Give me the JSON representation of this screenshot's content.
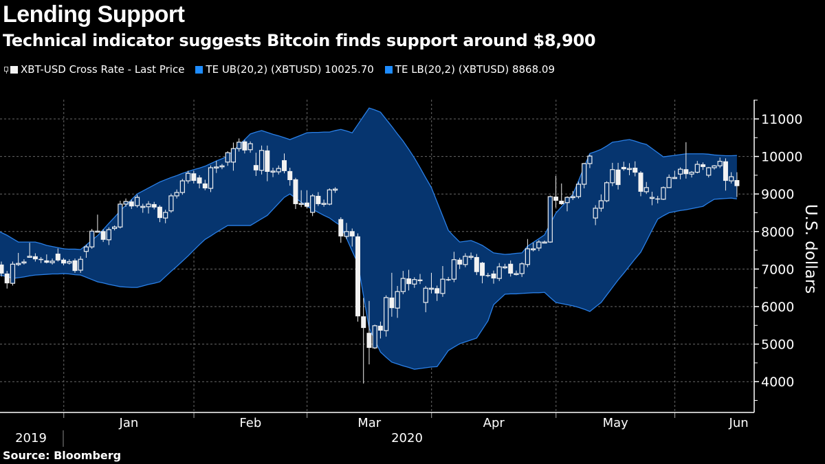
{
  "chart_data": {
    "type": "candlestick",
    "title": "Lending Support",
    "subtitle": "Technical indicator suggests Bitcoin finds support around $8,900",
    "ylabel": "U.S. dollars",
    "source": "Source: Bloomberg",
    "ylim": [
      3200,
      11500
    ],
    "y_ticks": [
      4000,
      5000,
      6000,
      7000,
      8000,
      9000,
      10000,
      11000
    ],
    "x_month_labels": [
      "Jan",
      "Feb",
      "Mar",
      "Apr",
      "May",
      "Jun"
    ],
    "x_year_labels": [
      "2019",
      "2020"
    ],
    "grid": true,
    "legend_placement": "top-left",
    "colors": {
      "background": "#000000",
      "candle": "#f2f2f2",
      "band_fill": "#06356f",
      "band_line": "#2a80e8",
      "legend_blue": "#1e8cff"
    },
    "legend": [
      {
        "label": "XBT-USD Cross Rate - Last Price",
        "swatch": "#f2f2f2",
        "icon": "candlestick-icon"
      },
      {
        "label": "TE UB(20,2) (XBTUSD) 10025.70",
        "swatch": "#1e8cff"
      },
      {
        "label": "TE LB(20,2) (XBTUSD) 8868.09",
        "swatch": "#1e8cff"
      }
    ],
    "dates": [
      "2019-12-16",
      "2019-12-17",
      "2019-12-18",
      "2019-12-19",
      "2019-12-20",
      "2019-12-23",
      "2019-12-24",
      "2019-12-25",
      "2019-12-26",
      "2019-12-27",
      "2019-12-30",
      "2019-12-31",
      "2020-01-01",
      "2020-01-02",
      "2020-01-03",
      "2020-01-06",
      "2020-01-07",
      "2020-01-08",
      "2020-01-09",
      "2020-01-10",
      "2020-01-13",
      "2020-01-14",
      "2020-01-15",
      "2020-01-16",
      "2020-01-17",
      "2020-01-20",
      "2020-01-21",
      "2020-01-22",
      "2020-01-23",
      "2020-01-24",
      "2020-01-27",
      "2020-01-28",
      "2020-01-29",
      "2020-01-30",
      "2020-01-31",
      "2020-02-03",
      "2020-02-04",
      "2020-02-05",
      "2020-02-06",
      "2020-02-07",
      "2020-02-10",
      "2020-02-11",
      "2020-02-12",
      "2020-02-13",
      "2020-02-14",
      "2020-02-17",
      "2020-02-18",
      "2020-02-19",
      "2020-02-20",
      "2020-02-21",
      "2020-02-24",
      "2020-02-25",
      "2020-02-26",
      "2020-02-27",
      "2020-02-28",
      "2020-03-02",
      "2020-03-03",
      "2020-03-04",
      "2020-03-05",
      "2020-03-06",
      "2020-03-09",
      "2020-03-10",
      "2020-03-11",
      "2020-03-12",
      "2020-03-13",
      "2020-03-16",
      "2020-03-17",
      "2020-03-18",
      "2020-03-19",
      "2020-03-20",
      "2020-03-23",
      "2020-03-24",
      "2020-03-25",
      "2020-03-26",
      "2020-03-27",
      "2020-03-30",
      "2020-03-31",
      "2020-04-01",
      "2020-04-02",
      "2020-04-03",
      "2020-04-06",
      "2020-04-07",
      "2020-04-08",
      "2020-04-09",
      "2020-04-10",
      "2020-04-13",
      "2020-04-14",
      "2020-04-15",
      "2020-04-16",
      "2020-04-17",
      "2020-04-20",
      "2020-04-21",
      "2020-04-22",
      "2020-04-23",
      "2020-04-24",
      "2020-04-27",
      "2020-04-28",
      "2020-04-29",
      "2020-04-30",
      "2020-05-01",
      "2020-05-04",
      "2020-05-05",
      "2020-05-06",
      "2020-05-07",
      "2020-05-08",
      "2020-05-11",
      "2020-05-12",
      "2020-05-13",
      "2020-05-14",
      "2020-05-15",
      "2020-05-18",
      "2020-05-19",
      "2020-05-20",
      "2020-05-21",
      "2020-05-22",
      "2020-05-25",
      "2020-05-26",
      "2020-05-27",
      "2020-05-28",
      "2020-05-29",
      "2020-06-01",
      "2020-06-02",
      "2020-06-03",
      "2020-06-04",
      "2020-06-05",
      "2020-06-08",
      "2020-06-09",
      "2020-06-10",
      "2020-06-11",
      "2020-06-12",
      "2020-06-15"
    ],
    "open": [
      7120,
      6880,
      6620,
      7120,
      7170,
      7330,
      7340,
      7270,
      7230,
      7170,
      7410,
      7250,
      7160,
      7230,
      6970,
      7470,
      7590,
      8000,
      8010,
      7780,
      8080,
      8120,
      8730,
      8800,
      8690,
      8660,
      8660,
      8730,
      8660,
      8360,
      8550,
      8950,
      9040,
      9350,
      9550,
      9440,
      9280,
      9150,
      9700,
      9740,
      9850,
      9850,
      10210,
      10400,
      10180,
      9770,
      9630,
      10160,
      9600,
      9590,
      9900,
      9610,
      9390,
      8740,
      8770,
      8510,
      8950,
      8740,
      8730,
      9110,
      8330,
      7870,
      8010,
      7870,
      5740,
      5300,
      4900,
      5490,
      5360,
      6240,
      5960,
      6400,
      6750,
      6600,
      6720,
      6110,
      6490,
      6490,
      6350,
      6730,
      6730,
      7250,
      7120,
      7340,
      7320,
      7170,
      6840,
      6880,
      6750,
      7060,
      7140,
      6880,
      6880,
      7120,
      7540,
      7560,
      7720,
      7720,
      8930,
      8820,
      8770,
      8930,
      8930,
      9260,
      9810,
      8360,
      8620,
      8820,
      9300,
      9650,
      9720,
      9680,
      9700,
      9570,
      9060,
      8910,
      8880,
      8860,
      9170,
      9440,
      9530,
      9660,
      9530,
      9580,
      9790,
      9500,
      9700,
      9750,
      9870,
      9350,
      9370
    ],
    "high": [
      7200,
      6950,
      7200,
      7430,
      7260,
      7700,
      7420,
      7320,
      7390,
      7280,
      7550,
      7290,
      7260,
      7280,
      7340,
      7650,
      8070,
      8450,
      8060,
      8110,
      8160,
      8820,
      8880,
      8850,
      8980,
      8740,
      8810,
      8790,
      8700,
      8580,
      9010,
      9120,
      9400,
      9620,
      9620,
      9500,
      9380,
      9760,
      9880,
      9800,
      10140,
      10370,
      10480,
      10440,
      10400,
      10100,
      10290,
      10290,
      9700,
      9760,
      10080,
      9700,
      9430,
      9100,
      9100,
      9000,
      9050,
      8850,
      9150,
      9180,
      8380,
      8230,
      8080,
      7950,
      6230,
      6150,
      5520,
      5600,
      6300,
      6900,
      6550,
      6950,
      6980,
      6780,
      6870,
      6550,
      6900,
      6560,
      7080,
      6790,
      7460,
      7300,
      7420,
      7440,
      7400,
      7190,
      6900,
      6960,
      7160,
      7140,
      7230,
      6960,
      7180,
      7800,
      7700,
      7770,
      7760,
      8960,
      9480,
      9280,
      8940,
      9080,
      9330,
      9830,
      10050,
      8700,
      8990,
      9340,
      9830,
      9830,
      9860,
      9820,
      9870,
      9610,
      9320,
      9060,
      8950,
      9200,
      9520,
      9620,
      9710,
      10380,
      9610,
      9880,
      9840,
      9720,
      9770,
      9970,
      9950,
      9580,
      9580
    ],
    "low": [
      6800,
      6480,
      6560,
      7080,
      7120,
      7300,
      7200,
      7160,
      7150,
      7120,
      7200,
      7100,
      7120,
      6900,
      6900,
      7300,
      7540,
      7980,
      7720,
      7640,
      8030,
      8080,
      8660,
      8600,
      8640,
      8500,
      8480,
      8590,
      8250,
      8220,
      8500,
      8880,
      8980,
      9280,
      9280,
      9150,
      9100,
      9050,
      9560,
      9660,
      9750,
      9620,
      10130,
      10080,
      10100,
      9480,
      9520,
      9340,
      9450,
      9520,
      9550,
      9220,
      8600,
      8650,
      8620,
      8410,
      8680,
      8660,
      8700,
      9030,
      7700,
      7800,
      7600,
      5600,
      3950,
      4460,
      4870,
      5150,
      5200,
      5730,
      5700,
      6330,
      6430,
      6500,
      6600,
      5850,
      6350,
      6150,
      6260,
      6680,
      6650,
      7000,
      7050,
      7250,
      6840,
      6620,
      6780,
      6610,
      6680,
      7000,
      6800,
      6830,
      6790,
      7050,
      7470,
      7480,
      7690,
      7700,
      8640,
      8710,
      8540,
      8840,
      8880,
      9150,
      9690,
      8170,
      8530,
      8780,
      9210,
      9120,
      9620,
      9500,
      9470,
      8940,
      9000,
      8700,
      8750,
      8840,
      9160,
      9400,
      9390,
      9410,
      9440,
      9550,
      9640,
      9440,
      9650,
      9690,
      9090,
      9280,
      8920
    ],
    "close": [
      6880,
      6620,
      7130,
      7150,
      7190,
      7340,
      7260,
      7240,
      7170,
      7210,
      7230,
      7150,
      7200,
      6950,
      7260,
      7590,
      8010,
      8010,
      7780,
      8050,
      8120,
      8730,
      8800,
      8670,
      8910,
      8670,
      8730,
      8640,
      8360,
      8510,
      8950,
      9040,
      9350,
      9550,
      9350,
      9280,
      9150,
      9700,
      9720,
      9750,
      10100,
      10210,
      10380,
      10160,
      10340,
      9630,
      10160,
      9590,
      9610,
      9680,
      9610,
      9370,
      8730,
      8750,
      8660,
      8950,
      8730,
      8750,
      9110,
      9130,
      7870,
      8000,
      7870,
      5740,
      5430,
      4900,
      5490,
      5360,
      6240,
      5960,
      6400,
      6750,
      6600,
      6720,
      6680,
      6490,
      6490,
      6350,
      6730,
      6700,
      7250,
      7120,
      7340,
      7340,
      6920,
      6820,
      6820,
      6750,
      7060,
      7060,
      6880,
      6880,
      7140,
      7540,
      7540,
      7720,
      7720,
      8930,
      8820,
      8730,
      8910,
      8930,
      9260,
      9810,
      10010,
      8620,
      8820,
      9300,
      9650,
      9240,
      9660,
      9680,
      9570,
      9060,
      9170,
      8910,
      8860,
      9170,
      9440,
      9440,
      9660,
      9530,
      9580,
      9790,
      9720,
      9700,
      9750,
      9870,
      9350,
      9460,
      9210
    ],
    "upper_band": [
      7990,
      7900,
      7810,
      7720,
      7720,
      7720,
      7720,
      7680,
      7630,
      7600,
      7570,
      7540,
      7530,
      7530,
      7520,
      7640,
      7770,
      7890,
      8050,
      8220,
      8380,
      8550,
      8700,
      8850,
      9000,
      9080,
      9160,
      9240,
      9320,
      9380,
      9440,
      9490,
      9550,
      9600,
      9650,
      9690,
      9740,
      9810,
      9880,
      9940,
      10010,
      10160,
      10300,
      10450,
      10600,
      10650,
      10690,
      10640,
      10590,
      10550,
      10500,
      10450,
      10510,
      10570,
      10630,
      10640,
      10640,
      10650,
      10650,
      10690,
      10720,
      10680,
      10630,
      10850,
      11070,
      11290,
      11240,
      11180,
      10990,
      10800,
      10600,
      10410,
      10190,
      9960,
      9700,
      9430,
      9170,
      8790,
      8410,
      8030,
      7870,
      7720,
      7740,
      7760,
      7700,
      7630,
      7530,
      7430,
      7410,
      7390,
      7400,
      7420,
      7430,
      7610,
      7710,
      7810,
      7910,
      8200,
      8490,
      8660,
      8820,
      8990,
      9350,
      9720,
      10080,
      10130,
      10190,
      10280,
      10380,
      10400,
      10430,
      10450,
      10410,
      10360,
      10320,
      10210,
      10100,
      9990,
      10010,
      10030,
      10050,
      10070,
      10070,
      10070,
      10070,
      10060,
      10040,
      10030,
      10020,
      10020,
      10025.7
    ],
    "lower_band": [
      6840,
      6800,
      6750,
      6770,
      6790,
      6820,
      6840,
      6850,
      6860,
      6870,
      6870,
      6880,
      6870,
      6850,
      6840,
      6780,
      6720,
      6660,
      6630,
      6590,
      6560,
      6530,
      6520,
      6510,
      6510,
      6550,
      6590,
      6620,
      6660,
      6800,
      6940,
      7070,
      7210,
      7350,
      7500,
      7650,
      7790,
      7880,
      7980,
      8070,
      8160,
      8160,
      8160,
      8160,
      8160,
      8250,
      8340,
      8430,
      8590,
      8750,
      8910,
      9000,
      8890,
      8780,
      8670,
      8590,
      8510,
      8430,
      8360,
      8250,
      8150,
      7820,
      7480,
      7150,
      6290,
      5430,
      5110,
      4790,
      4650,
      4520,
      4470,
      4420,
      4380,
      4330,
      4350,
      4370,
      4390,
      4400,
      4610,
      4830,
      4920,
      5010,
      5060,
      5110,
      5160,
      5390,
      5620,
      6050,
      6190,
      6330,
      6340,
      6340,
      6350,
      6360,
      6370,
      6370,
      6380,
      6240,
      6110,
      6080,
      6050,
      6020,
      5980,
      5930,
      5870,
      5990,
      6110,
      6310,
      6510,
      6710,
      6890,
      7080,
      7270,
      7450,
      7740,
      8040,
      8330,
      8420,
      8500,
      8530,
      8560,
      8580,
      8610,
      8640,
      8670,
      8770,
      8860,
      8870,
      8880,
      8890,
      8868.09
    ]
  }
}
